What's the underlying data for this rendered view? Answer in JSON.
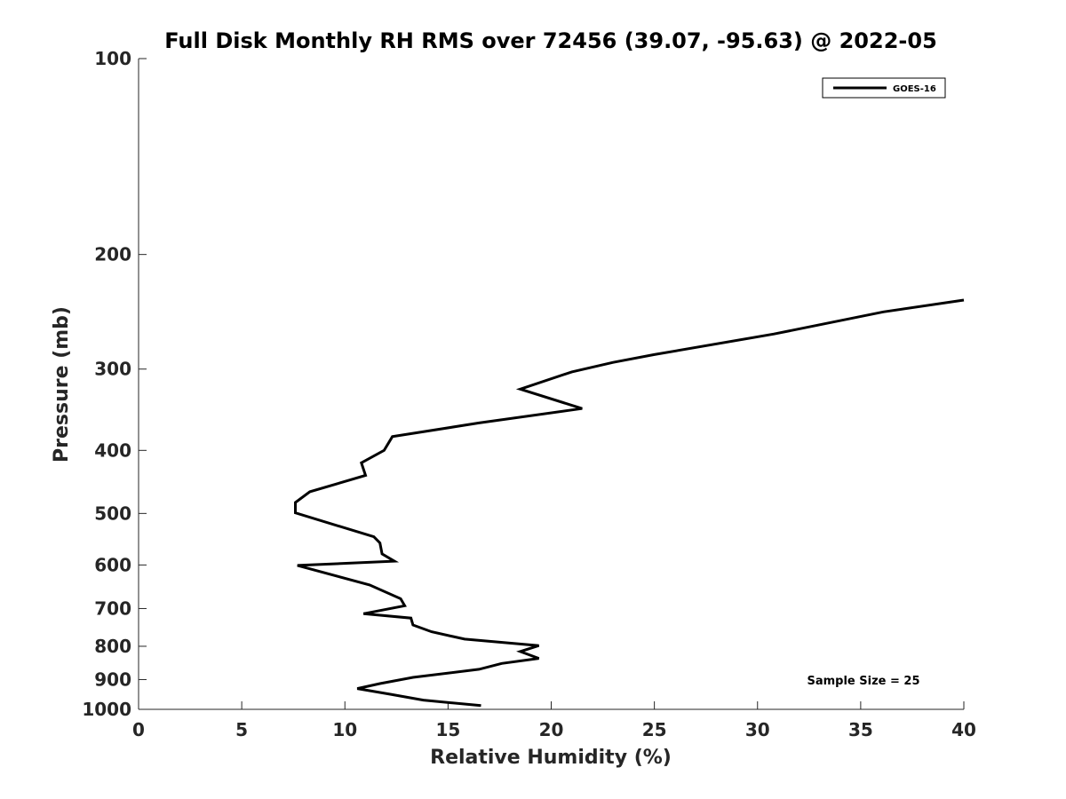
{
  "chart_data": {
    "type": "line",
    "title": "Full Disk Monthly RH RMS over 72456 (39.07, -95.63) @ 2022-05",
    "xlabel": "Relative Humidity (%)",
    "ylabel": "Pressure (mb)",
    "xlim": [
      0,
      40
    ],
    "ylim": [
      1000,
      100
    ],
    "yscale": "log",
    "y_reversed": true,
    "xticks": [
      0,
      5,
      10,
      15,
      20,
      25,
      30,
      35,
      40
    ],
    "yticks": [
      100,
      200,
      300,
      400,
      500,
      600,
      700,
      800,
      900,
      1000
    ],
    "grid": false,
    "legend_position": "top-right",
    "annotation": "Sample Size = 25",
    "series": [
      {
        "name": "GOES-16",
        "color": "#000000",
        "points": [
          {
            "x": 40.0,
            "y": 235
          },
          {
            "x": 36.1,
            "y": 245
          },
          {
            "x": 30.8,
            "y": 265
          },
          {
            "x": 25.0,
            "y": 285
          },
          {
            "x": 23.0,
            "y": 293
          },
          {
            "x": 21.0,
            "y": 303
          },
          {
            "x": 18.5,
            "y": 322
          },
          {
            "x": 21.5,
            "y": 345
          },
          {
            "x": 16.5,
            "y": 363
          },
          {
            "x": 12.3,
            "y": 381
          },
          {
            "x": 11.9,
            "y": 400
          },
          {
            "x": 10.8,
            "y": 418
          },
          {
            "x": 11.0,
            "y": 437
          },
          {
            "x": 8.3,
            "y": 463
          },
          {
            "x": 7.6,
            "y": 481
          },
          {
            "x": 7.6,
            "y": 499
          },
          {
            "x": 11.4,
            "y": 543
          },
          {
            "x": 11.7,
            "y": 555
          },
          {
            "x": 11.8,
            "y": 577
          },
          {
            "x": 12.4,
            "y": 592
          },
          {
            "x": 7.7,
            "y": 601
          },
          {
            "x": 11.2,
            "y": 644
          },
          {
            "x": 12.7,
            "y": 676
          },
          {
            "x": 12.9,
            "y": 693
          },
          {
            "x": 10.9,
            "y": 713
          },
          {
            "x": 13.2,
            "y": 724
          },
          {
            "x": 13.3,
            "y": 742
          },
          {
            "x": 14.2,
            "y": 760
          },
          {
            "x": 15.8,
            "y": 780
          },
          {
            "x": 19.4,
            "y": 798
          },
          {
            "x": 18.5,
            "y": 815
          },
          {
            "x": 19.4,
            "y": 835
          },
          {
            "x": 17.6,
            "y": 850
          },
          {
            "x": 16.5,
            "y": 868
          },
          {
            "x": 13.3,
            "y": 893
          },
          {
            "x": 11.7,
            "y": 913
          },
          {
            "x": 10.6,
            "y": 929
          },
          {
            "x": 12.2,
            "y": 948
          },
          {
            "x": 13.8,
            "y": 968
          },
          {
            "x": 16.6,
            "y": 987
          }
        ]
      }
    ]
  }
}
